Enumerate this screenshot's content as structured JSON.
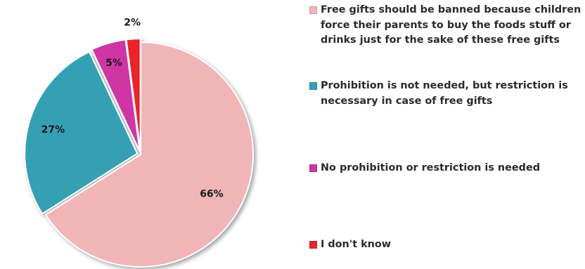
{
  "chart_data": {
    "type": "pie",
    "title": "",
    "slices": [
      {
        "label": "Free gifts should be banned because children force their parents to buy the foods stuff or drinks just for the sake of these free gifts",
        "value": 66,
        "value_label": "66%",
        "color": "#f1b5b8"
      },
      {
        "label": "Prohibition is not needed, but restriction is necessary in case of free gifts",
        "value": 27,
        "value_label": "27%",
        "color": "#34a0b4"
      },
      {
        "label": "No prohibition or restriction is needed",
        "value": 5,
        "value_label": "5%",
        "color": "#cf36a4"
      },
      {
        "label": "I don't know",
        "value": 2,
        "value_label": "2%",
        "color": "#e8262b"
      }
    ],
    "legend_placement": "right"
  }
}
